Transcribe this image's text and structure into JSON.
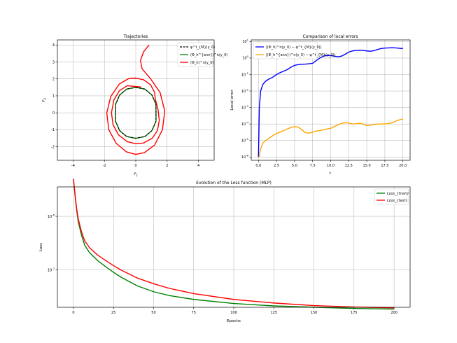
{
  "chart_data": [
    {
      "type": "line",
      "title": "Trajectories",
      "xlabel": "y_1",
      "ylabel": "y_2",
      "xlim": [
        -5,
        5
      ],
      "ylim": [
        -2.8,
        4.3
      ],
      "xticks": [
        "-4",
        "-2",
        "0",
        "2",
        "4"
      ],
      "yticks": [
        "-2",
        "-1",
        "0",
        "1",
        "2",
        "3",
        "4"
      ],
      "grid": true,
      "legend_position": "top-right",
      "legend": [
        "φ^t_{M}(y_0)",
        "(Φ_h^{ann})^n(y_0)",
        "(Φ_h)^n(y_0)"
      ],
      "series": [
        {
          "name": "φ^t_{M}(y_0)",
          "color": "#000000",
          "style": "dashed",
          "x": [
            0,
            0.58,
            1.03,
            1.29,
            1.29,
            1.03,
            0.58,
            0,
            -0.58,
            -1.03,
            -1.29,
            -1.29,
            -1.03,
            -0.58,
            0
          ],
          "y": [
            1.5,
            1.4,
            1.05,
            0.5,
            -0.5,
            -1.05,
            -1.4,
            -1.5,
            -1.4,
            -1.05,
            -0.5,
            0.5,
            1.05,
            1.4,
            1.5
          ]
        },
        {
          "name": "(Φ_h^{ann})^n(y_0)",
          "color": "#008000",
          "style": "solid",
          "x": [
            0,
            0.58,
            1.03,
            1.29,
            1.29,
            1.03,
            0.58,
            0,
            -0.58,
            -1.03,
            -1.29,
            -1.29,
            -1.03,
            -0.58,
            0
          ],
          "y": [
            1.5,
            1.4,
            1.05,
            0.5,
            -0.5,
            -1.05,
            -1.4,
            -1.5,
            -1.4,
            -1.05,
            -0.5,
            0.5,
            1.05,
            1.4,
            1.5
          ]
        },
        {
          "name": "(Φ_h)^n(y_0) outer",
          "color": "#ff0000",
          "style": "solid",
          "x": [
            0.85,
            0.5,
            0.3,
            0.4,
            0.95,
            1.55,
            1.85,
            1.7,
            1.2,
            0.55,
            0,
            -0.6,
            -1.25,
            -1.72,
            -1.85,
            -1.6,
            -1.05,
            -0.45,
            0,
            0.5,
            0.95,
            1.2,
            1.25
          ],
          "y": [
            4.0,
            3.6,
            3.1,
            2.6,
            2.0,
            1.2,
            0.1,
            -1.0,
            -1.9,
            -2.35,
            -2.45,
            -2.3,
            -1.8,
            -1.0,
            0,
            0.95,
            1.7,
            2.02,
            2.05,
            1.95,
            1.65,
            1.2,
            0.8
          ]
        },
        {
          "name": "(Φ_h)^n(y_0) inner",
          "color": "#ff0000",
          "style": "solid",
          "x": [
            1.25,
            1.42,
            1.5,
            1.38,
            1.05,
            0.5,
            0,
            -0.55,
            -1.1,
            -1.45,
            -1.55,
            -1.4,
            -1.05,
            -0.55,
            0,
            0.35
          ],
          "y": [
            0.8,
            0.2,
            -0.45,
            -1.05,
            -1.5,
            -1.78,
            -1.82,
            -1.7,
            -1.3,
            -0.7,
            0,
            0.75,
            1.3,
            1.6,
            1.55,
            1.52
          ]
        }
      ]
    },
    {
      "type": "line",
      "title": "Comparison of local errors",
      "xlabel": "t",
      "ylabel": "Local error",
      "xlim": [
        -1,
        21
      ],
      "ylim_log10": [
        -6.2,
        1.1
      ],
      "yscale": "log",
      "xticks": [
        "0.0",
        "2.5",
        "5.0",
        "7.5",
        "10.0",
        "12.5",
        "15.0",
        "17.5",
        "20.0"
      ],
      "yticks": [
        "10^{-6}",
        "10^{-5}",
        "10^{-4}",
        "10^{-3}",
        "10^{-2}",
        "10^{-1}",
        "10^{0}",
        "10^{1}"
      ],
      "grid": true,
      "legend_position": "top-left",
      "legend": [
        "|(Φ_h)^n(y_0) − φ^t_{M}(y_0)|",
        "|(Φ_h^{ann})^n(y_0) − φ^t_{M}(y_0)|"
      ],
      "series": [
        {
          "name": "|(Φ_h)^n(y_0) − φ^t_{M}(y_0)|",
          "color": "#0000ff",
          "x": [
            0,
            0.12,
            0.3,
            0.6,
            1,
            1.5,
            2,
            2.5,
            3,
            3.5,
            4,
            4.5,
            5,
            5.5,
            6,
            6.5,
            7,
            7.5,
            8,
            8.5,
            9,
            9.5,
            10,
            10.5,
            11,
            11.5,
            12,
            12.5,
            13,
            13.5,
            14,
            14.5,
            15,
            15.5,
            16,
            16.5,
            17,
            17.5,
            18,
            18.5,
            19,
            19.5,
            20
          ],
          "y": [
            1e-06,
            0.001,
            0.01,
            0.025,
            0.04,
            0.055,
            0.07,
            0.1,
            0.13,
            0.16,
            0.2,
            0.28,
            0.36,
            0.4,
            0.42,
            0.43,
            0.45,
            0.48,
            0.7,
            1.0,
            1.3,
            1.45,
            1.4,
            1.3,
            1.2,
            1.3,
            1.7,
            2.3,
            2.7,
            2.9,
            2.95,
            2.9,
            2.7,
            2.6,
            2.8,
            3.3,
            3.8,
            4.0,
            4.1,
            4.2,
            4.1,
            3.9,
            3.8
          ]
        },
        {
          "name": "|(Φ_h^{ann})^n(y_0) − φ^t_{M}(y_0)|",
          "color": "#ffa500",
          "x": [
            0,
            0.1,
            0.3,
            0.6,
            1,
            1.5,
            2,
            2.5,
            3,
            3.5,
            4,
            4.5,
            5,
            5.5,
            6,
            6.5,
            7,
            7.5,
            8,
            8.5,
            9,
            9.5,
            10,
            10.5,
            11,
            11.5,
            12,
            12.5,
            13,
            13.5,
            14,
            14.5,
            15,
            15.5,
            16,
            16.5,
            17,
            17.5,
            18,
            18.5,
            19,
            19.5,
            20
          ],
          "y": [
            1e-06,
            1e-06,
            3e-06,
            7e-06,
            1e-05,
            1.4e-05,
            2e-05,
            2.7e-05,
            3.2e-05,
            4e-05,
            5e-05,
            6.2e-05,
            7e-05,
            6.5e-05,
            4.5e-05,
            3e-05,
            2.8e-05,
            3.2e-05,
            3.8e-05,
            4e-05,
            4.5e-05,
            5e-05,
            5.5e-05,
            7e-05,
            9e-05,
            0.00011,
            0.00012,
            0.000115,
            0.0001,
            0.000105,
            0.00011,
            0.0001,
            8e-05,
            8.5e-05,
            9.5e-05,
            0.0001,
            0.0001,
            0.000102,
            0.000105,
            0.00012,
            0.00015,
            0.00018,
            0.0002
          ]
        }
      ]
    },
    {
      "type": "line",
      "title": "Evolution of the Loss function (MLP)",
      "xlabel": "Epochs",
      "ylabel": "Loss",
      "xlim": [
        -10,
        210
      ],
      "ylim_log10": [
        -7.7,
        -5.45
      ],
      "yscale": "log",
      "xticks": [
        "0",
        "25",
        "50",
        "75",
        "100",
        "125",
        "150",
        "175",
        "200"
      ],
      "yticks": [
        "10^{-7}",
        "10^{-6}"
      ],
      "grid": true,
      "legend_position": "top-right",
      "legend": [
        "Loss_{train}",
        "Loss_{test}"
      ],
      "series": [
        {
          "name": "Loss_{train}",
          "color": "#008000",
          "x": [
            0,
            1,
            2,
            3,
            5,
            7,
            10,
            15,
            20,
            25,
            30,
            40,
            50,
            60,
            75,
            100,
            125,
            150,
            175,
            200
          ],
          "y": [
            5e-06,
            2.5e-06,
            1.3e-06,
            8e-07,
            4.5e-07,
            2.9e-07,
            2.1e-07,
            1.5e-07,
            1.15e-07,
            9e-08,
            7.2e-08,
            5e-08,
            3.9e-08,
            3.3e-08,
            2.8e-08,
            2.35e-08,
            2.12e-08,
            2e-08,
            1.9e-08,
            1.85e-08
          ]
        },
        {
          "name": "Loss_{test}",
          "color": "#ff0000",
          "x": [
            0,
            1,
            2,
            3,
            5,
            7,
            10,
            15,
            20,
            25,
            30,
            40,
            50,
            60,
            75,
            100,
            125,
            150,
            175,
            200
          ],
          "y": [
            5e-06,
            2.6e-06,
            1.4e-06,
            9e-07,
            5.2e-07,
            3.5e-07,
            2.6e-07,
            1.9e-07,
            1.5e-07,
            1.2e-07,
            9.8e-08,
            7e-08,
            5.5e-08,
            4.5e-08,
            3.6e-08,
            2.8e-08,
            2.4e-08,
            2.15e-08,
            2.02e-08,
            1.95e-08
          ]
        }
      ]
    }
  ]
}
